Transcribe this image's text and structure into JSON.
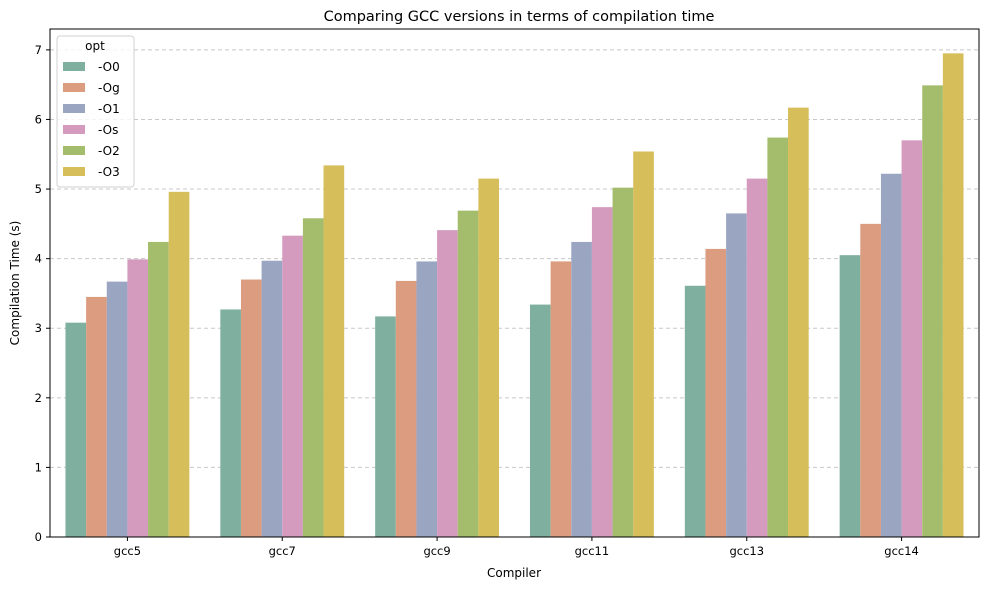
{
  "chart_data": {
    "type": "bar",
    "title": "Comparing GCC versions in terms of compilation time",
    "xlabel": "Compiler",
    "ylabel": "Compilation Time (s)",
    "categories": [
      "gcc5",
      "gcc7",
      "gcc9",
      "gcc11",
      "gcc13",
      "gcc14"
    ],
    "ylim": [
      0,
      7.3
    ],
    "yticks": [
      0,
      1,
      2,
      3,
      4,
      5,
      6,
      7
    ],
    "grid": "y-dashed",
    "legend": {
      "title": "opt",
      "position": "top-left"
    },
    "series": [
      {
        "name": "-O0",
        "color": "#7fb09f",
        "values": [
          3.08,
          3.27,
          3.17,
          3.34,
          3.61,
          4.05
        ]
      },
      {
        "name": "-Og",
        "color": "#dc9c80",
        "values": [
          3.45,
          3.7,
          3.68,
          3.96,
          4.14,
          4.5
        ]
      },
      {
        "name": "-O1",
        "color": "#9aa5c1",
        "values": [
          3.67,
          3.97,
          3.96,
          4.24,
          4.65,
          5.22
        ]
      },
      {
        "name": "-Os",
        "color": "#d49bbf",
        "values": [
          3.99,
          4.33,
          4.41,
          4.74,
          5.15,
          5.7
        ]
      },
      {
        "name": "-O2",
        "color": "#a3bd6c",
        "values": [
          4.24,
          4.58,
          4.69,
          5.02,
          5.74,
          6.49
        ]
      },
      {
        "name": "-O3",
        "color": "#d6be5b",
        "values": [
          4.96,
          5.34,
          5.15,
          5.54,
          6.17,
          6.95
        ]
      }
    ]
  }
}
